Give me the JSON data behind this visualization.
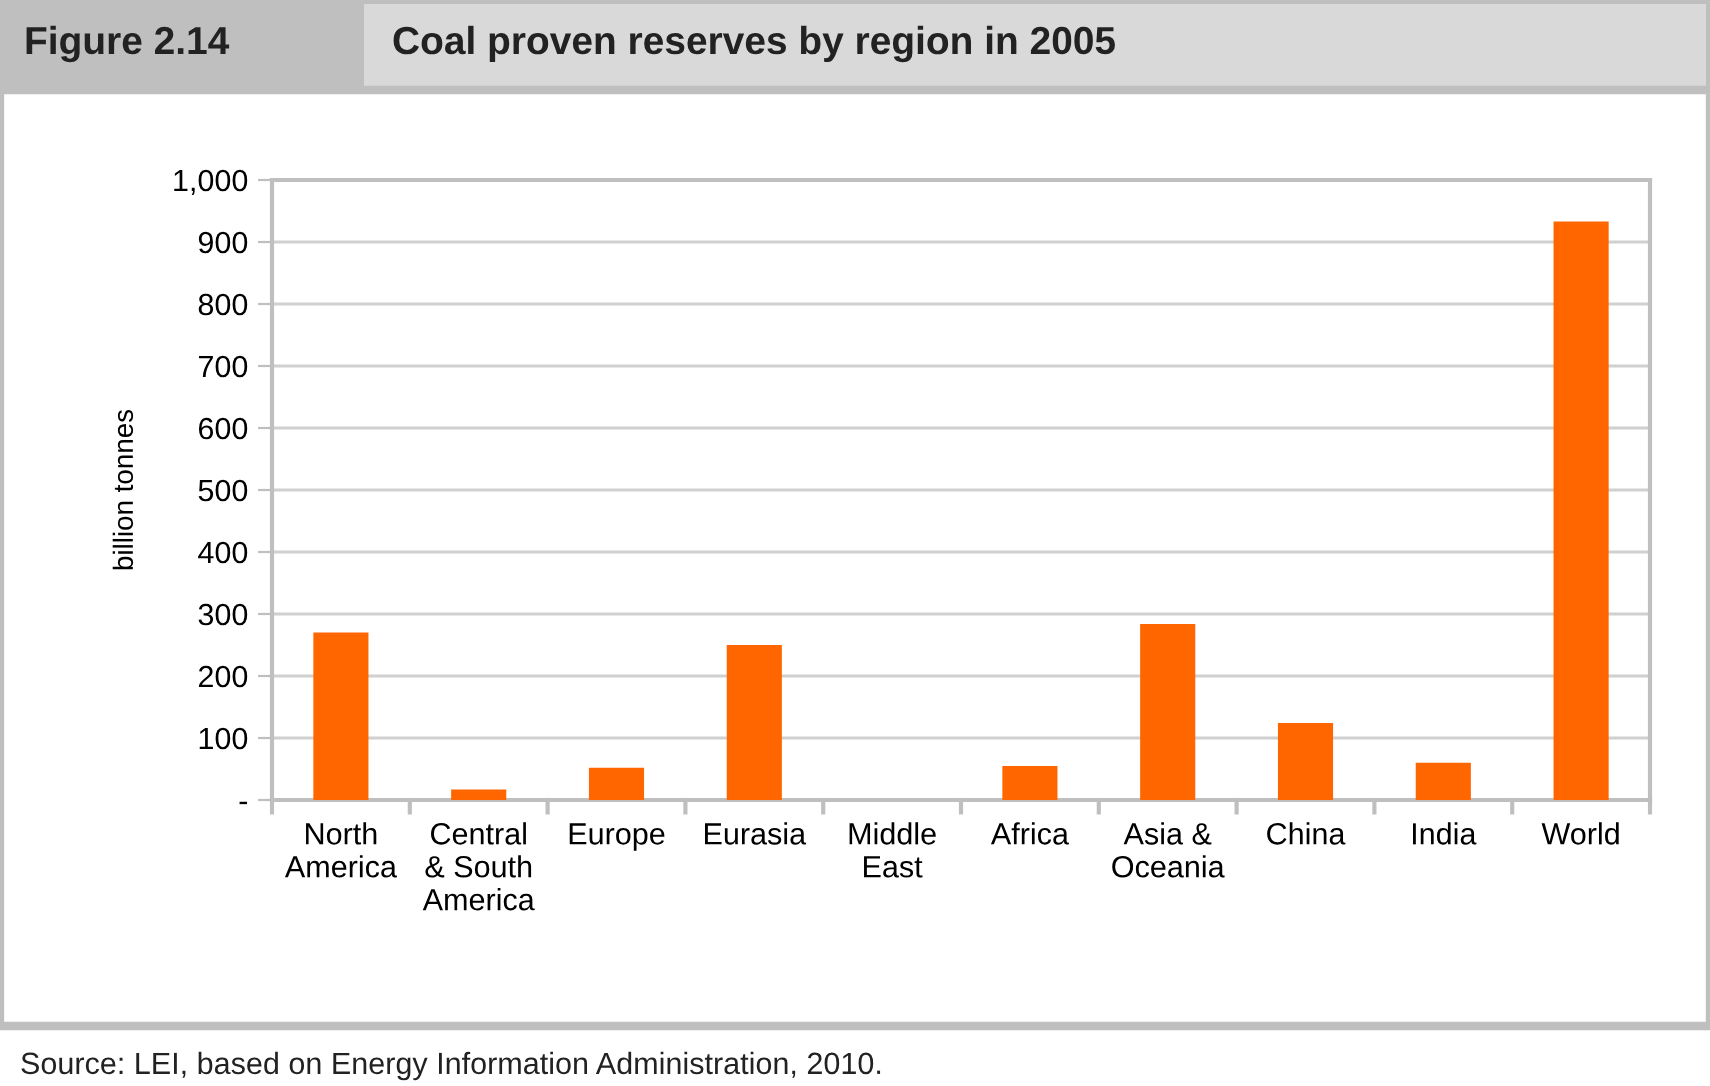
{
  "chart_data": {
    "type": "bar",
    "title": "Coal proven reserves by region in 2005",
    "subtitle": "Figure 2.14",
    "ylabel": "billion tonnes",
    "categories": [
      "North\nAmerica",
      "Central\n& South\nAmerica",
      "Europe",
      "Eurasia",
      "Middle\nEast",
      "Africa",
      "Asia &\nOceania",
      "China",
      "India",
      "World"
    ],
    "values": [
      270,
      17,
      52,
      250,
      0,
      55,
      284,
      124,
      60,
      933
    ],
    "color": "#ff6600",
    "ylim": [
      0,
      1000
    ],
    "yticks": [
      {
        "value": 0,
        "label": "-"
      },
      100,
      200,
      300,
      400,
      500,
      600,
      700,
      800,
      900,
      {
        "value": 1000,
        "label": "1,000"
      }
    ],
    "grid": "y",
    "annotations": [
      "Source: LEI, based on Energy Information Administration, 2010."
    ]
  }
}
